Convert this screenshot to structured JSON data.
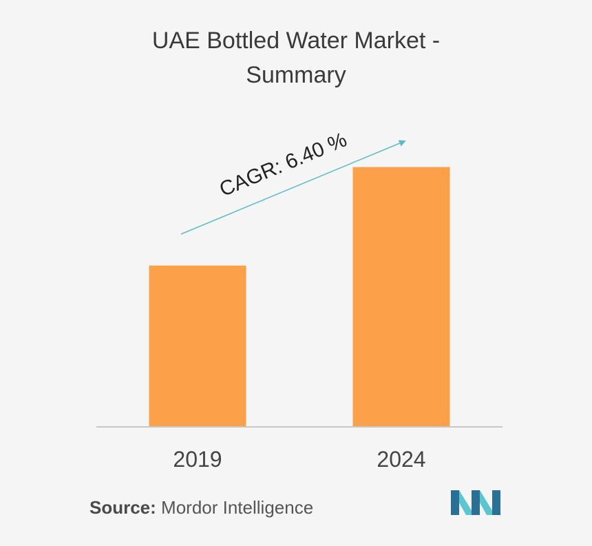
{
  "title_line1": "UAE Bottled Water Market -",
  "title_line2": "Summary",
  "chart_data": {
    "type": "bar",
    "categories": [
      "2019",
      "2024"
    ],
    "values": [
      62,
      100
    ],
    "ylim": [
      0,
      110
    ],
    "grid": false,
    "bar_color": "#fca049",
    "annotation": "CAGR: 6.40 %",
    "arrow_color": "#5bbcc8",
    "axis_color": "#c8c8c8"
  },
  "source": {
    "label": "Source:",
    "text": "Mordor Intelligence"
  },
  "logo": {
    "icon": "mordor-intelligence-logo-icon",
    "colors": [
      "#2a6f96",
      "#5cc6d0"
    ]
  }
}
